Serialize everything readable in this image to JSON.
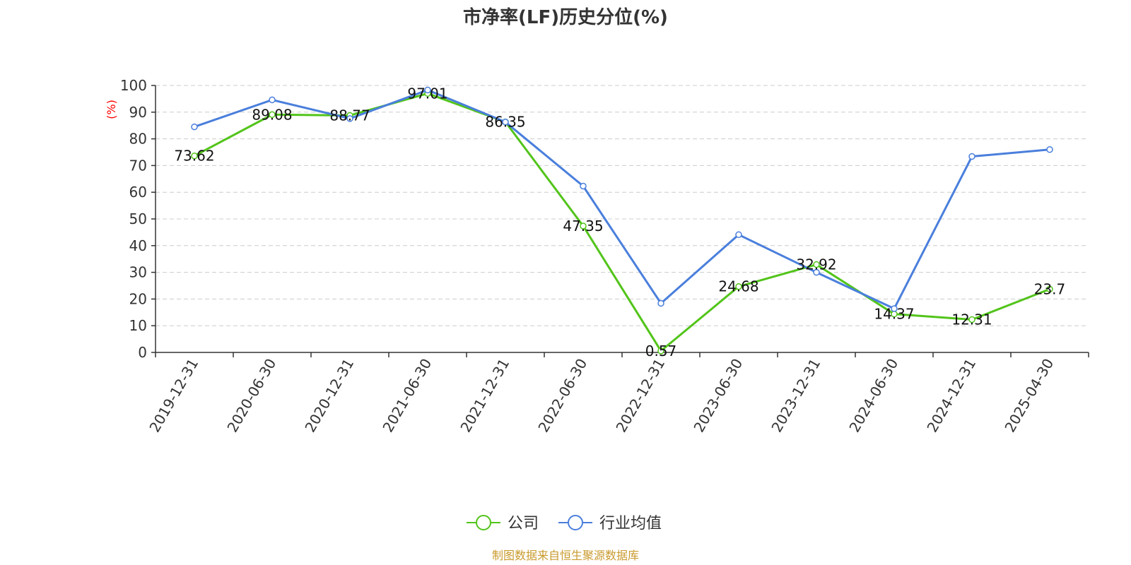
{
  "chart_data": {
    "type": "line",
    "title": "市净率(LF)历史分位(%)",
    "ylabel": "(%)",
    "xlabel": "",
    "ylim": [
      0,
      100
    ],
    "yticks": [
      0,
      10,
      20,
      30,
      40,
      50,
      60,
      70,
      80,
      90,
      100
    ],
    "categories": [
      "2019-12-31",
      "2020-06-30",
      "2020-12-31",
      "2021-06-30",
      "2021-12-31",
      "2022-06-30",
      "2022-12-31",
      "2023-06-30",
      "2023-12-31",
      "2024-06-30",
      "2024-12-31",
      "2025-04-30"
    ],
    "grid": true,
    "legend_position": "bottom-center",
    "series": [
      {
        "name": "公司",
        "color": "#52c41a",
        "values": [
          73.62,
          89.08,
          88.77,
          97.01,
          86.35,
          47.35,
          0.57,
          24.68,
          32.92,
          14.37,
          12.31,
          23.7
        ],
        "labels": [
          "73.62",
          "89.08",
          "88.77",
          "97.01",
          "86.35",
          "47.35",
          "0.57",
          "24.68",
          "32.92",
          "14.37",
          "12.31",
          "23.7"
        ]
      },
      {
        "name": "行业均值",
        "color": "#4a7fdc",
        "values": [
          84.5,
          94.6,
          87.6,
          98.3,
          86.3,
          62.3,
          18.4,
          44.1,
          30.0,
          16.4,
          73.4,
          76.0
        ]
      }
    ]
  },
  "source_note": "制图数据来自恒生聚源数据库"
}
